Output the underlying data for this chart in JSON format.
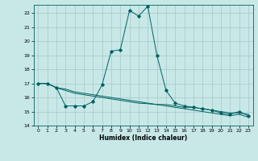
{
  "title": "",
  "xlabel": "Humidex (Indice chaleur)",
  "background_color": "#c8e8e8",
  "grid_color": "#a8c8c8",
  "line_color": "#006060",
  "xlim": [
    -0.5,
    23.5
  ],
  "ylim": [
    14,
    22.6
  ],
  "yticks": [
    14,
    15,
    16,
    17,
    18,
    19,
    20,
    21,
    22
  ],
  "xticks": [
    0,
    1,
    2,
    3,
    4,
    5,
    6,
    7,
    8,
    9,
    10,
    11,
    12,
    13,
    14,
    15,
    16,
    17,
    18,
    19,
    20,
    21,
    22,
    23
  ],
  "series1": [
    [
      0,
      17.0
    ],
    [
      1,
      17.0
    ],
    [
      2,
      16.7
    ],
    [
      3,
      15.4
    ],
    [
      4,
      15.4
    ],
    [
      5,
      15.4
    ],
    [
      6,
      15.7
    ],
    [
      7,
      16.9
    ],
    [
      8,
      19.3
    ],
    [
      9,
      19.4
    ],
    [
      10,
      22.2
    ],
    [
      11,
      21.8
    ],
    [
      12,
      22.5
    ],
    [
      13,
      19.0
    ],
    [
      14,
      16.5
    ],
    [
      15,
      15.6
    ],
    [
      16,
      15.4
    ],
    [
      17,
      15.3
    ],
    [
      18,
      15.2
    ],
    [
      19,
      15.1
    ],
    [
      20,
      14.9
    ],
    [
      21,
      14.8
    ],
    [
      22,
      15.0
    ],
    [
      23,
      14.7
    ]
  ],
  "series2": [
    [
      0,
      17.0
    ],
    [
      1,
      17.0
    ],
    [
      2,
      16.7
    ],
    [
      3,
      16.6
    ],
    [
      4,
      16.4
    ],
    [
      5,
      16.3
    ],
    [
      6,
      16.2
    ],
    [
      7,
      16.1
    ],
    [
      8,
      16.0
    ],
    [
      9,
      15.9
    ],
    [
      10,
      15.8
    ],
    [
      11,
      15.7
    ],
    [
      12,
      15.6
    ],
    [
      13,
      15.5
    ],
    [
      14,
      15.5
    ],
    [
      15,
      15.4
    ],
    [
      16,
      15.3
    ],
    [
      17,
      15.3
    ],
    [
      18,
      15.2
    ],
    [
      19,
      15.1
    ],
    [
      20,
      15.0
    ],
    [
      21,
      14.9
    ],
    [
      22,
      14.9
    ],
    [
      23,
      14.8
    ]
  ],
  "series3": [
    [
      0,
      17.0
    ],
    [
      1,
      17.0
    ],
    [
      2,
      16.7
    ],
    [
      3,
      16.5
    ],
    [
      4,
      16.3
    ],
    [
      5,
      16.2
    ],
    [
      6,
      16.1
    ],
    [
      7,
      16.0
    ],
    [
      8,
      15.9
    ],
    [
      9,
      15.8
    ],
    [
      10,
      15.7
    ],
    [
      11,
      15.6
    ],
    [
      12,
      15.56
    ],
    [
      13,
      15.5
    ],
    [
      14,
      15.4
    ],
    [
      15,
      15.3
    ],
    [
      16,
      15.2
    ],
    [
      17,
      15.1
    ],
    [
      18,
      15.0
    ],
    [
      19,
      14.9
    ],
    [
      20,
      14.8
    ],
    [
      21,
      14.7
    ],
    [
      22,
      14.8
    ],
    [
      23,
      14.6
    ]
  ]
}
